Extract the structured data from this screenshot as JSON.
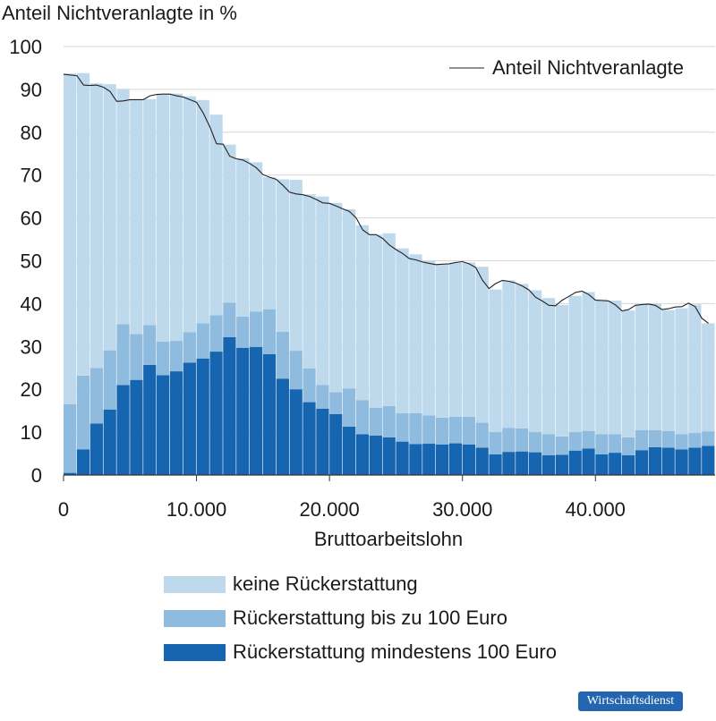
{
  "chart_data": {
    "type": "bar",
    "stacked": true,
    "y_axis_title": "Anteil Nichtveranlagte in %",
    "xlabel": "Bruttoarbeitslohn",
    "xlim": [
      0,
      49000
    ],
    "ylim": [
      0,
      100
    ],
    "bin_width": 1000,
    "x_ticks": [
      0,
      10000,
      20000,
      30000,
      40000
    ],
    "x_tick_labels": [
      "0",
      "10.000",
      "20.000",
      "30.000",
      "40.000"
    ],
    "y_ticks": [
      0,
      10,
      20,
      30,
      40,
      50,
      60,
      70,
      80,
      90,
      100
    ],
    "y_tick_labels": [
      "0",
      "10",
      "20",
      "30",
      "40",
      "50",
      "60",
      "70",
      "80",
      "90",
      "100"
    ],
    "grid": true,
    "bin_starts": [
      0,
      1000,
      2000,
      3000,
      4000,
      5000,
      6000,
      7000,
      8000,
      9000,
      10000,
      11000,
      12000,
      13000,
      14000,
      15000,
      16000,
      17000,
      18000,
      19000,
      20000,
      21000,
      22000,
      23000,
      24000,
      25000,
      26000,
      27000,
      28000,
      29000,
      30000,
      31000,
      32000,
      33000,
      34000,
      35000,
      36000,
      37000,
      38000,
      39000,
      40000,
      41000,
      42000,
      43000,
      44000,
      45000,
      46000,
      47000,
      48000
    ],
    "series": [
      {
        "name": "Rückerstattung mindestens 100 Euro",
        "color": "#1565b0",
        "values": [
          0.5,
          6,
          12,
          15.3,
          21,
          22.2,
          25.7,
          23.3,
          24.2,
          26.2,
          27.2,
          28.8,
          32.2,
          29.7,
          29.9,
          28.2,
          22.5,
          20,
          17,
          15.5,
          14.2,
          11.3,
          9.5,
          9.2,
          8.8,
          7.8,
          7.2,
          7.3,
          7.1,
          7.4,
          7.1,
          6.4,
          4.8,
          5.4,
          5.5,
          5.3,
          4.6,
          4.7,
          5.7,
          6.2,
          4.8,
          5.2,
          4.6,
          5.8,
          6.5,
          6.4,
          6,
          6.4,
          6.8
        ]
      },
      {
        "name": "Rückerstattung bis zu 100 Euro",
        "color": "#8ebbde",
        "values": [
          16,
          17.2,
          13,
          13.8,
          14.2,
          10.7,
          9.3,
          7.8,
          7.1,
          7.1,
          8.2,
          8.5,
          8,
          7.3,
          8.2,
          10.5,
          10.9,
          9,
          7.9,
          5.5,
          5.1,
          8.9,
          8,
          6.5,
          7.3,
          6.6,
          7.2,
          6.6,
          6.3,
          6.2,
          6.5,
          5.8,
          5.2,
          5.6,
          5.4,
          4.7,
          4.9,
          4.3,
          4.3,
          4.1,
          4.7,
          4.3,
          4.2,
          4.7,
          4,
          3.9,
          3.5,
          3.4,
          3.4
        ]
      },
      {
        "name": "keine Rückerstattung",
        "color": "#bfd9ec",
        "values": [
          77.2,
          70.6,
          66.4,
          62.1,
          54.9,
          54.6,
          52.7,
          57.8,
          57.7,
          55.1,
          52.1,
          46.8,
          36.9,
          36.9,
          34.9,
          30.8,
          35.6,
          39.9,
          40.6,
          44,
          44.2,
          41.8,
          40.8,
          40.4,
          40.3,
          38.5,
          37.1,
          36.2,
          35.7,
          35.9,
          36,
          36.4,
          33.3,
          34.4,
          33.7,
          33.1,
          31.8,
          30.7,
          31.8,
          32.4,
          31.5,
          31.2,
          29.6,
          29.3,
          29.4,
          28.2,
          29.4,
          30,
          25.2
        ]
      }
    ],
    "line_series": {
      "name": "Anteil Nichtveranlagte",
      "color": "#222222",
      "x": [
        0,
        1000,
        1500,
        2000,
        2500,
        3000,
        3500,
        4000,
        4500,
        5000,
        5500,
        6000,
        6500,
        7000,
        7500,
        8000,
        8500,
        9000,
        9500,
        10000,
        10500,
        11000,
        11500,
        12000,
        12500,
        13000,
        13500,
        14000,
        14500,
        15000,
        15500,
        16000,
        16500,
        17000,
        17500,
        18000,
        18500,
        19000,
        19500,
        20000,
        20500,
        21000,
        21500,
        22000,
        22500,
        23000,
        23500,
        24000,
        24500,
        25000,
        25500,
        26000,
        26500,
        27000,
        27500,
        28000,
        28500,
        29000,
        29500,
        30000,
        30500,
        31000,
        31500,
        32000,
        32500,
        33000,
        33500,
        34000,
        34500,
        35000,
        35500,
        36000,
        36500,
        37000,
        37500,
        38000,
        38500,
        39000,
        39500,
        40000,
        40500,
        41000,
        41500,
        42000,
        42500,
        43000,
        43500,
        44000,
        44500,
        45000,
        45500,
        46000,
        46500,
        47000,
        47500,
        48000,
        48500
      ],
      "values": [
        93.5,
        93.2,
        91,
        90.9,
        91,
        90.5,
        89.5,
        87.2,
        87.3,
        87.6,
        87.6,
        87.6,
        88.5,
        88.8,
        88.9,
        88.9,
        88.5,
        88.2,
        87.6,
        87,
        84.5,
        81.3,
        77.3,
        77.2,
        74.4,
        73.8,
        73.5,
        72.7,
        71.7,
        70.1,
        69.5,
        69,
        67.6,
        66,
        65.6,
        65.4,
        65,
        64.3,
        63.5,
        63.4,
        62.8,
        62.1,
        61.5,
        60,
        57.2,
        56.1,
        56.1,
        55.2,
        53.7,
        52.6,
        51.7,
        50.5,
        50.2,
        49.7,
        49.4,
        49.1,
        49.2,
        49.3,
        49.6,
        49.8,
        49.3,
        48.4,
        45.5,
        43.5,
        44.7,
        45.4,
        45.2,
        44.8,
        44.1,
        43.2,
        41.5,
        40.6,
        39.6,
        39.5,
        40.8,
        41.7,
        42.6,
        42.9,
        42.1,
        40.8,
        40.7,
        40.6,
        39.7,
        38.3,
        38.6,
        39.6,
        39.8,
        39.9,
        39.6,
        38.6,
        38.8,
        39.2,
        39.3,
        40.1,
        39.3,
        36.6,
        35.4
      ]
    }
  },
  "legend": {
    "line_label": "Anteil Nichtveranlagte",
    "items": [
      {
        "label": "keine Rückerstattung",
        "color": "#bfd9ec"
      },
      {
        "label": "Rückerstattung bis zu 100 Euro",
        "color": "#8ebbde"
      },
      {
        "label": "Rückerstattung mindestens 100 Euro",
        "color": "#1565b0"
      }
    ]
  },
  "brand": {
    "text": "Wirtschaftsdienst"
  }
}
